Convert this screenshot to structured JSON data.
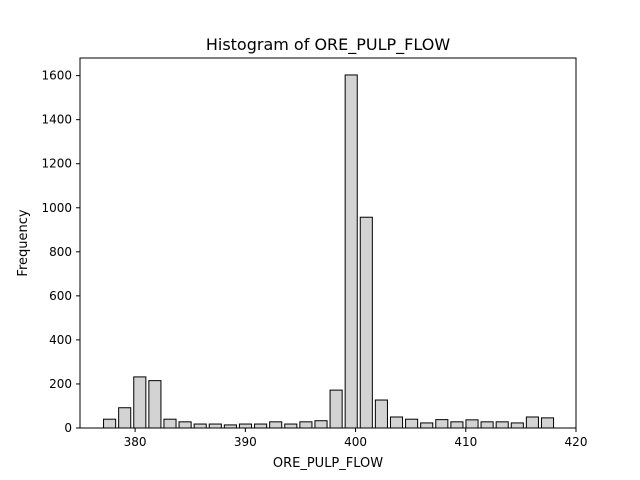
{
  "chart_data": {
    "type": "bar",
    "title": "Histogram of ORE_PULP_FLOW",
    "xlabel": "ORE_PULP_FLOW",
    "ylabel": "Frequency",
    "xlim": [
      375,
      420
    ],
    "ylim": [
      0,
      1680
    ],
    "x_ticks": [
      380,
      390,
      400,
      410,
      420
    ],
    "y_ticks": [
      0,
      200,
      400,
      600,
      800,
      1000,
      1200,
      1400,
      1600
    ],
    "bin_start": 377,
    "bin_width": 1.37,
    "values": [
      40,
      92,
      232,
      215,
      40,
      28,
      18,
      18,
      14,
      18,
      18,
      28,
      18,
      28,
      33,
      172,
      1603,
      957,
      127,
      50,
      40,
      23,
      38,
      28,
      37,
      28,
      28,
      23,
      50,
      46
    ],
    "bar_color": "#d3d3d3",
    "edge_color": "#000000",
    "grid": false,
    "legend": "none"
  }
}
